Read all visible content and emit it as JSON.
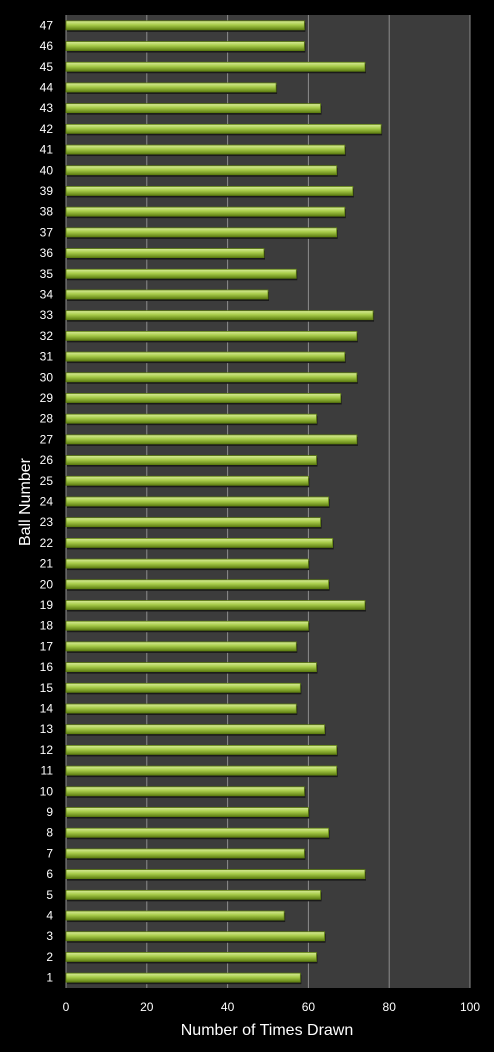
{
  "chart_data": {
    "type": "bar",
    "orientation": "horizontal",
    "title": "",
    "xlabel": "Number of Times Drawn",
    "ylabel": "Ball Number",
    "xlim": [
      0,
      100
    ],
    "x_ticks": [
      0,
      20,
      40,
      60,
      80,
      100
    ],
    "grid": "vertical",
    "legend": "none",
    "categories": [
      "1",
      "2",
      "3",
      "4",
      "5",
      "6",
      "7",
      "8",
      "9",
      "10",
      "11",
      "12",
      "13",
      "14",
      "15",
      "16",
      "17",
      "18",
      "19",
      "20",
      "21",
      "22",
      "23",
      "24",
      "25",
      "26",
      "27",
      "28",
      "29",
      "30",
      "31",
      "32",
      "33",
      "34",
      "35",
      "36",
      "37",
      "38",
      "39",
      "40",
      "41",
      "42",
      "43",
      "44",
      "45",
      "46",
      "47"
    ],
    "values": [
      58,
      62,
      64,
      54,
      63,
      74,
      59,
      65,
      60,
      59,
      67,
      67,
      64,
      57,
      58,
      62,
      57,
      60,
      74,
      65,
      60,
      66,
      63,
      65,
      60,
      62,
      72,
      62,
      68,
      72,
      69,
      72,
      76,
      50,
      57,
      49,
      67,
      69,
      71,
      67,
      69,
      78,
      63,
      52,
      74,
      59,
      59
    ],
    "colors": {
      "background": "#000000",
      "plot_area": "#3c3c3c",
      "bar_light": "#d9ec9a",
      "bar_mid": "#a8cc4a",
      "bar_dark": "#5f7f12",
      "grid": "#8c8c8c",
      "text": "#ffffff"
    }
  }
}
